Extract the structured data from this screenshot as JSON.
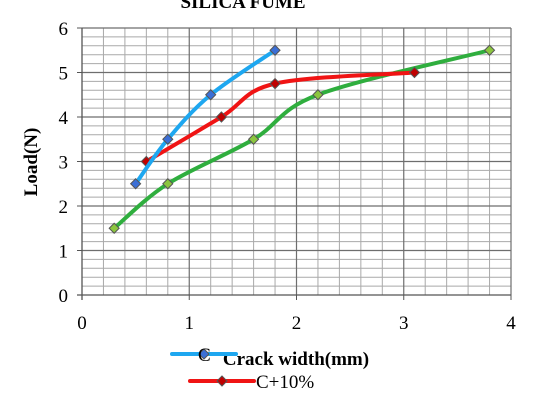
{
  "chart_data": {
    "type": "line",
    "title": "SILICA FUME",
    "xlabel": "Crack width(mm)",
    "ylabel": "Load(N)",
    "xlim": [
      0,
      4
    ],
    "ylim": [
      0,
      6
    ],
    "xticks": [
      "0",
      "1",
      "2",
      "3",
      "4"
    ],
    "yticks": [
      "0",
      "1",
      "2",
      "3",
      "4",
      "5",
      "6"
    ],
    "grid": true,
    "legend_position": "bottom",
    "series": [
      {
        "name": "C",
        "color": "#1EA7F0",
        "marker_color": "#3B6FD6",
        "x": [
          0.5,
          0.8,
          1.2,
          1.8
        ],
        "y": [
          2.5,
          3.5,
          4.5,
          5.5
        ]
      },
      {
        "name": "C+10%",
        "color": "#F01414",
        "marker_color": "#C00000",
        "x": [
          0.6,
          1.3,
          1.8,
          3.1
        ],
        "y": [
          3.0,
          4.0,
          4.75,
          5.0
        ]
      },
      {
        "name": "",
        "color": "#2FAE3E",
        "marker_color": "#8CC63F",
        "x": [
          0.3,
          0.8,
          1.6,
          2.2,
          3.8
        ],
        "y": [
          1.5,
          2.5,
          3.5,
          4.5,
          5.5
        ]
      }
    ]
  }
}
